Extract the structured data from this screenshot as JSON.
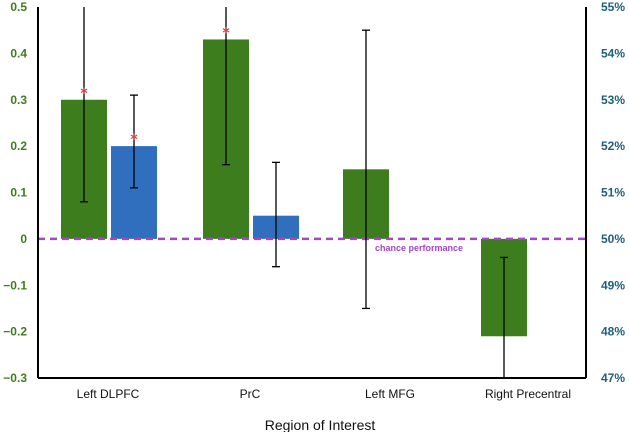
{
  "chart_data": {
    "type": "bar",
    "categories": [
      "Left DLPFC",
      "PrC",
      "Left MFG",
      "Right Precentral"
    ],
    "series": [
      {
        "color": "#3e7d1e",
        "values": [
          0.3,
          0.43,
          0.15,
          -0.21
        ],
        "err_low": [
          0.08,
          0.16,
          -0.15,
          -0.33
        ],
        "err_high": [
          0.52,
          0.54,
          0.45,
          -0.04
        ],
        "significant": [
          true,
          true,
          false,
          false
        ]
      },
      {
        "color": "#2f6fbe",
        "values": [
          0.2,
          0.05,
          null,
          null
        ],
        "err_low": [
          0.11,
          -0.06,
          null,
          null
        ],
        "err_high": [
          0.31,
          0.165,
          null,
          null
        ],
        "significant": [
          true,
          false,
          false,
          false
        ]
      }
    ],
    "ylim": [
      -0.3,
      0.5
    ],
    "y_ticks": [
      "−0.3",
      "−0.2",
      "−0.1",
      "0",
      "0.1",
      "0.2",
      "0.3",
      "0.4",
      "0.5"
    ],
    "y_tick_values": [
      -0.3,
      -0.2,
      -0.1,
      0,
      0.1,
      0.2,
      0.3,
      0.4,
      0.5
    ],
    "y2_ticks": [
      "47%",
      "48%",
      "49%",
      "50%",
      "51%",
      "52%",
      "53%",
      "54%",
      "55%"
    ],
    "y2_tick_values": [
      47,
      48,
      49,
      50,
      51,
      52,
      53,
      54,
      55
    ],
    "y2lim": [
      47,
      55
    ],
    "xlabel": "Region of Interest",
    "chance_line": {
      "value": 0,
      "label": "chance performance",
      "color": "#a347c8",
      "style": "dashed"
    },
    "left_axis_color": "#3e7d1e",
    "right_axis_color": "#1f5f80",
    "marker_color": "#e23b3b",
    "grid": false
  }
}
